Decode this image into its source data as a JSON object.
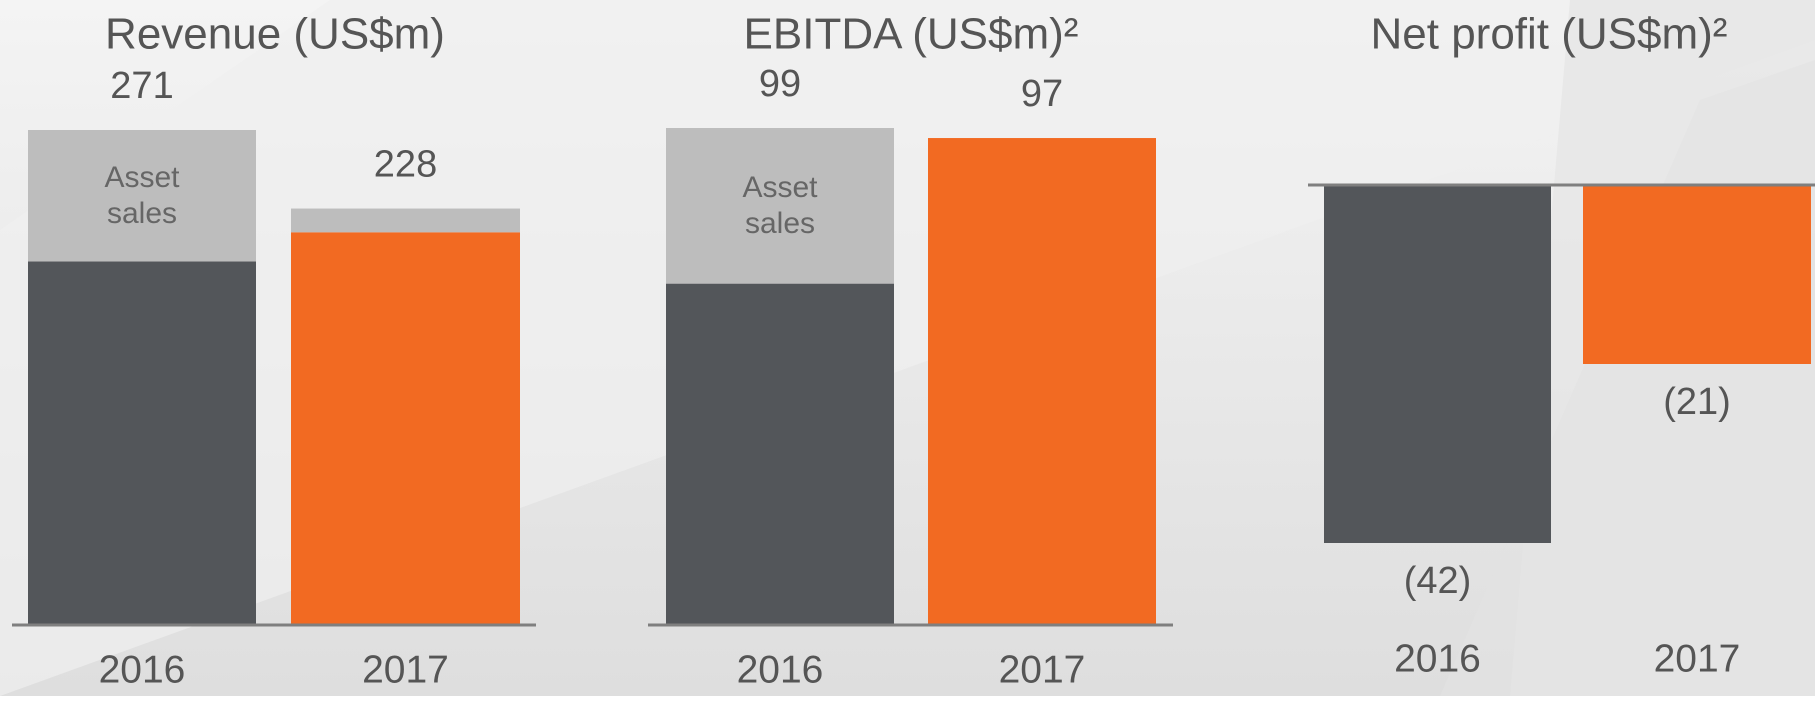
{
  "chart_data": [
    {
      "type": "bar",
      "stacked": true,
      "title": "Revenue (US$m)",
      "categories": [
        "2016",
        "2017"
      ],
      "series": [
        {
          "colors": [
            "#53565a",
            "#f26a22"
          ],
          "values": [
            199,
            215
          ]
        },
        {
          "name": "Asset sales",
          "color": "#bdbdbd",
          "values": [
            72,
            13
          ]
        }
      ],
      "totals": [
        271,
        228
      ]
    },
    {
      "type": "bar",
      "stacked": true,
      "title": "EBITDA (US$m)²",
      "categories": [
        "2016",
        "2017"
      ],
      "series": [
        {
          "colors": [
            "#53565a",
            "#f26a22"
          ],
          "values": [
            68,
            97
          ]
        },
        {
          "name": "Asset sales",
          "color": "#bdbdbd",
          "values": [
            31,
            0
          ]
        }
      ],
      "totals": [
        99,
        97
      ]
    },
    {
      "type": "bar",
      "title": "Net profit (US$m)²",
      "categories": [
        "2016",
        "2017"
      ],
      "series": [
        {
          "colors": [
            "#53565a",
            "#f26a22"
          ],
          "values": [
            -42,
            -21
          ],
          "value_labels": [
            "(42)",
            "(21)"
          ]
        }
      ]
    }
  ]
}
